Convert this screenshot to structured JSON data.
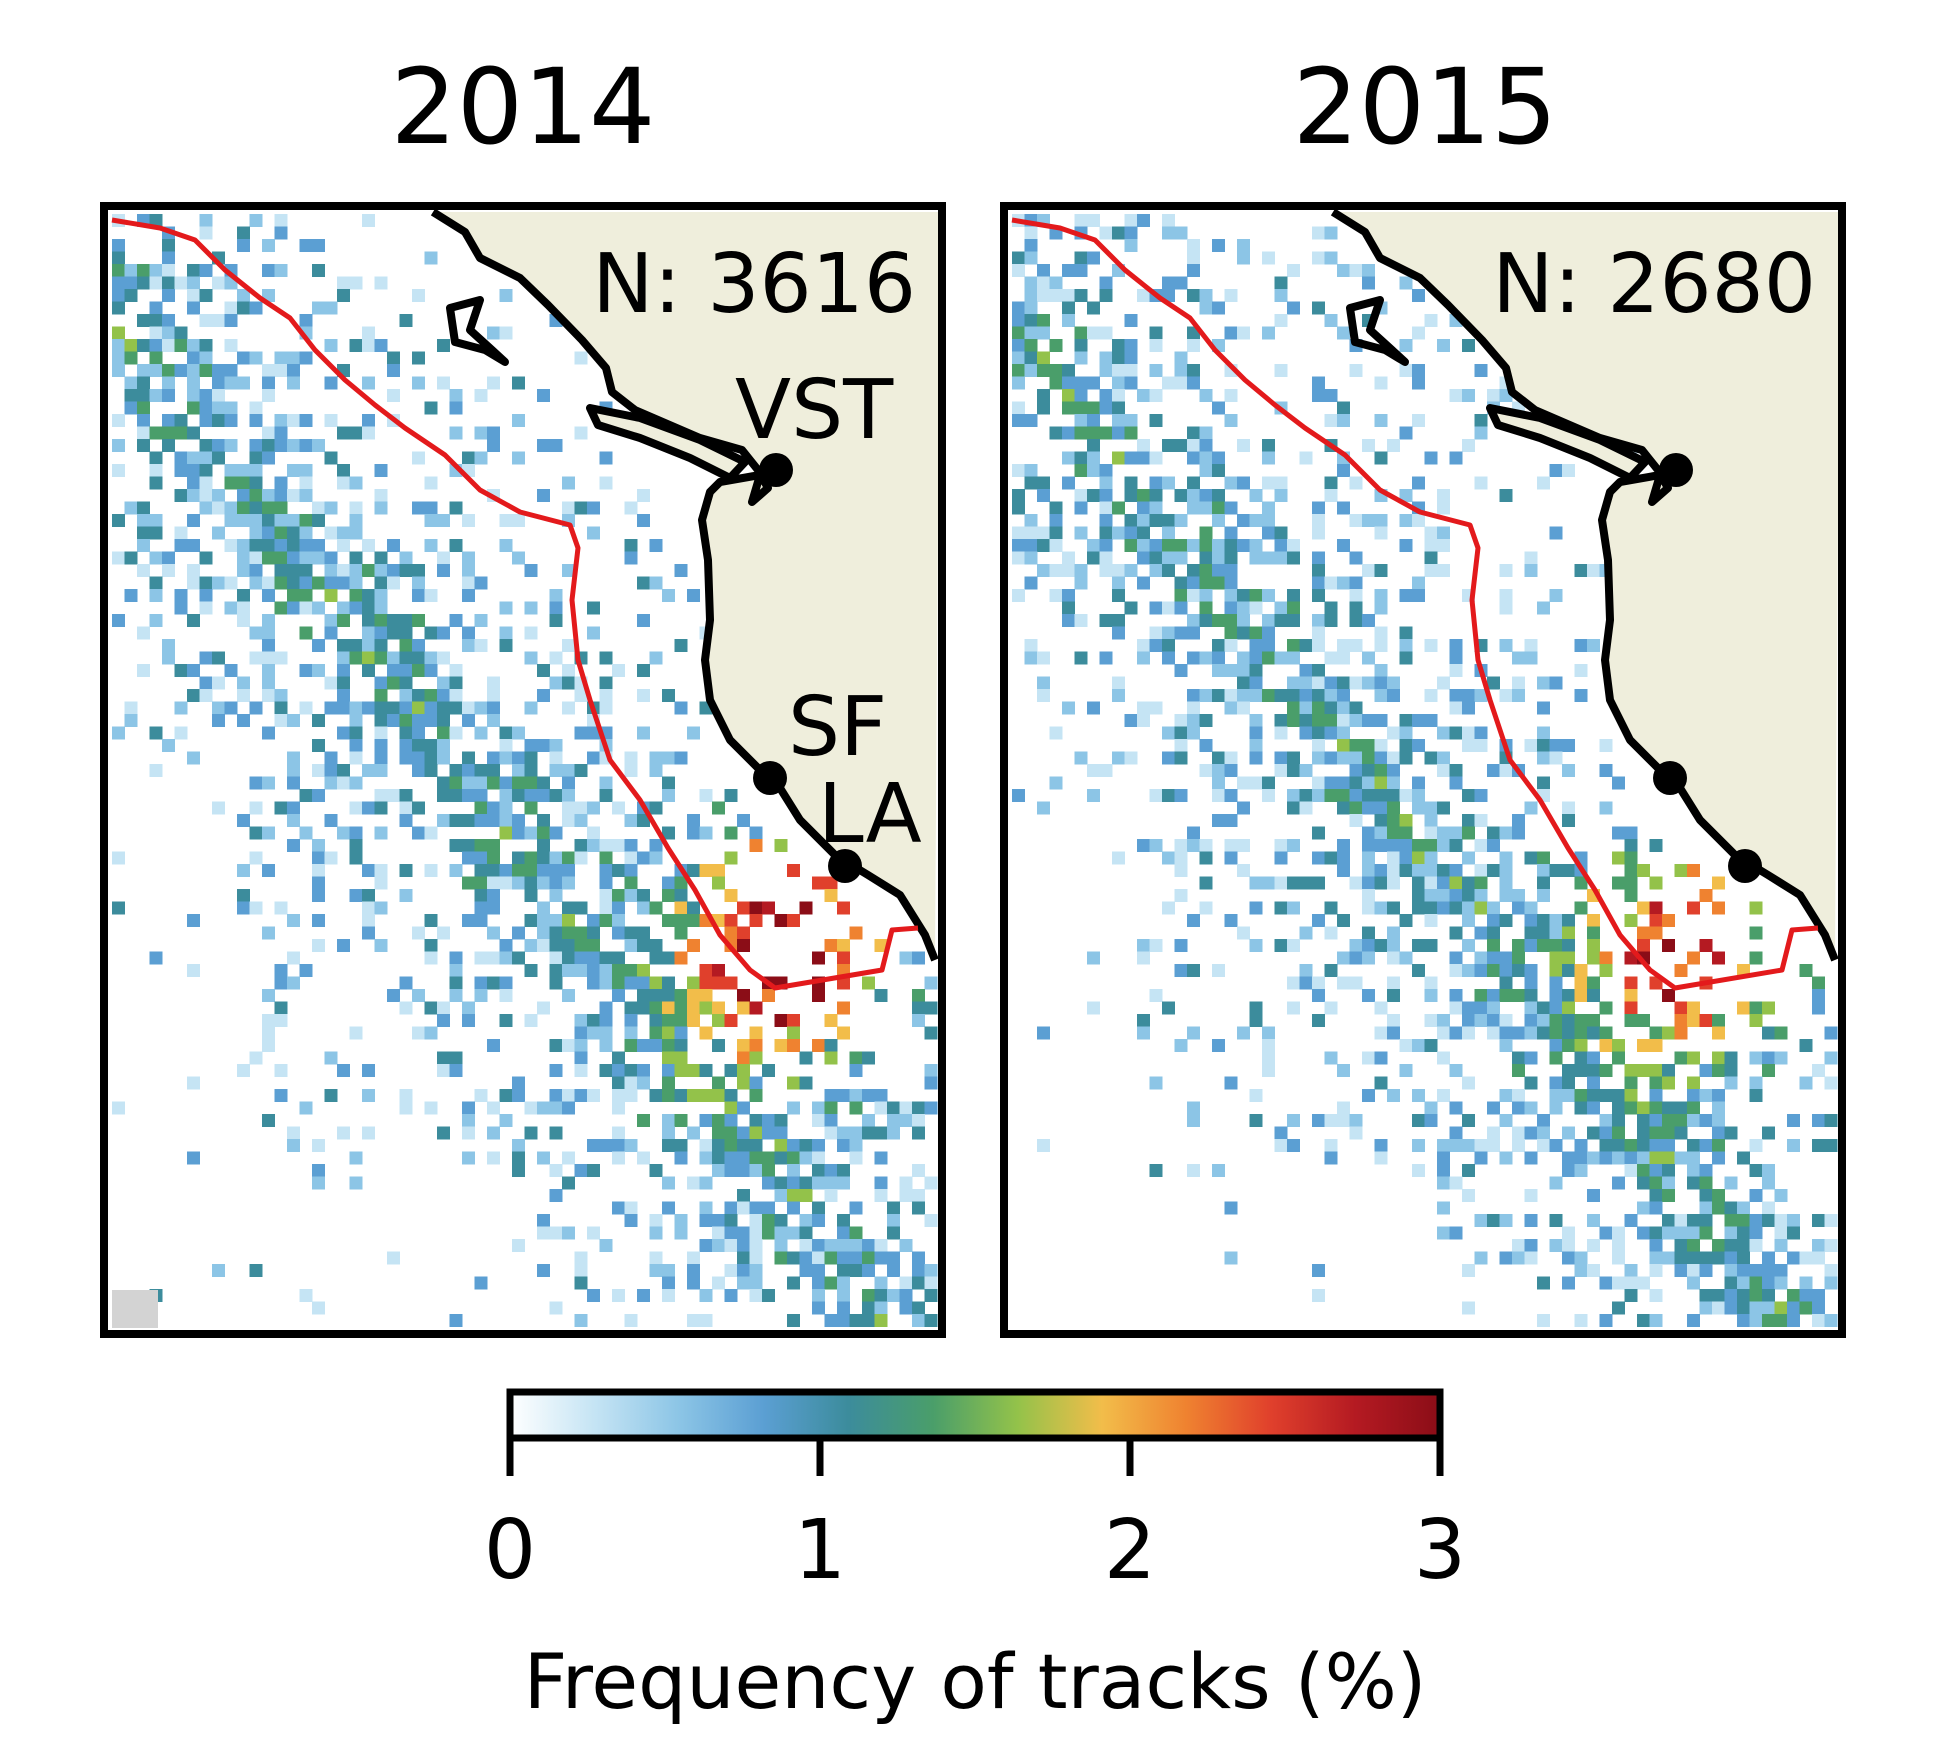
{
  "figure": {
    "colorbar": {
      "label": "Frequency of tracks (%)",
      "ticks": [
        "0",
        "1",
        "2",
        "3"
      ],
      "min": 0,
      "max": 3,
      "colors": [
        "#ffffff",
        "#c5e4f4",
        "#8cc5e6",
        "#5b9fd3",
        "#3c8c9c",
        "#4a9e6a",
        "#93c24a",
        "#f2bd4a",
        "#ef8230",
        "#e0402c",
        "#b41a22",
        "#8b0d17"
      ]
    },
    "panels": [
      {
        "title": "2014",
        "count_label": "N: 3616",
        "cities": [
          {
            "label": "VST"
          },
          {
            "label": "SF"
          },
          {
            "label": "LA"
          }
        ]
      },
      {
        "title": "2015",
        "count_label": "N: 2680",
        "cities": [
          {
            "label": ""
          },
          {
            "label": ""
          },
          {
            "label": ""
          }
        ]
      }
    ],
    "colors": {
      "land": "#efeedc",
      "coastline": "#000000",
      "boundary_line": "#e31a1c",
      "no_data_cell": "#d3d3d3",
      "frame": "#000000"
    }
  }
}
